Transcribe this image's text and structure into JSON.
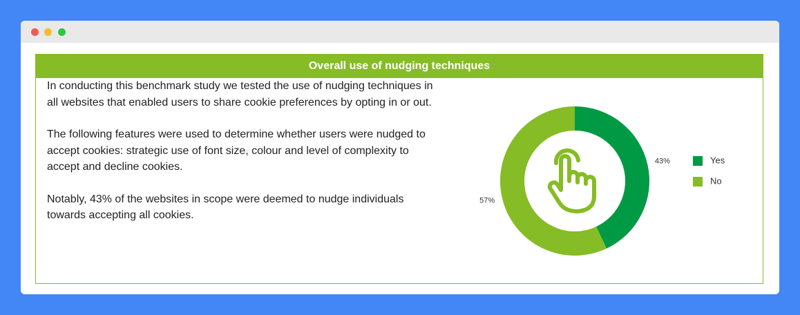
{
  "header": {
    "title": "Overall use of nudging techniques"
  },
  "paragraphs": [
    "In conducting this benchmark study we tested the use of nudging techniques in all websites that enabled users to share cookie preferences by opting in or out.",
    "The following features were used to determine whether users were nudged to accept cookies: strategic use of font size, colour and level of complexity to accept and decline cookies.",
    "Notably, 43% of the websites in scope were deemed to nudge individuals towards accepting all cookies."
  ],
  "chart_data": {
    "type": "donut",
    "categories": [
      "Yes",
      "No"
    ],
    "values": [
      43,
      57
    ],
    "value_labels": [
      "43%",
      "57%"
    ],
    "colors": [
      "#009a44",
      "#86bc25"
    ],
    "legend": "right"
  }
}
